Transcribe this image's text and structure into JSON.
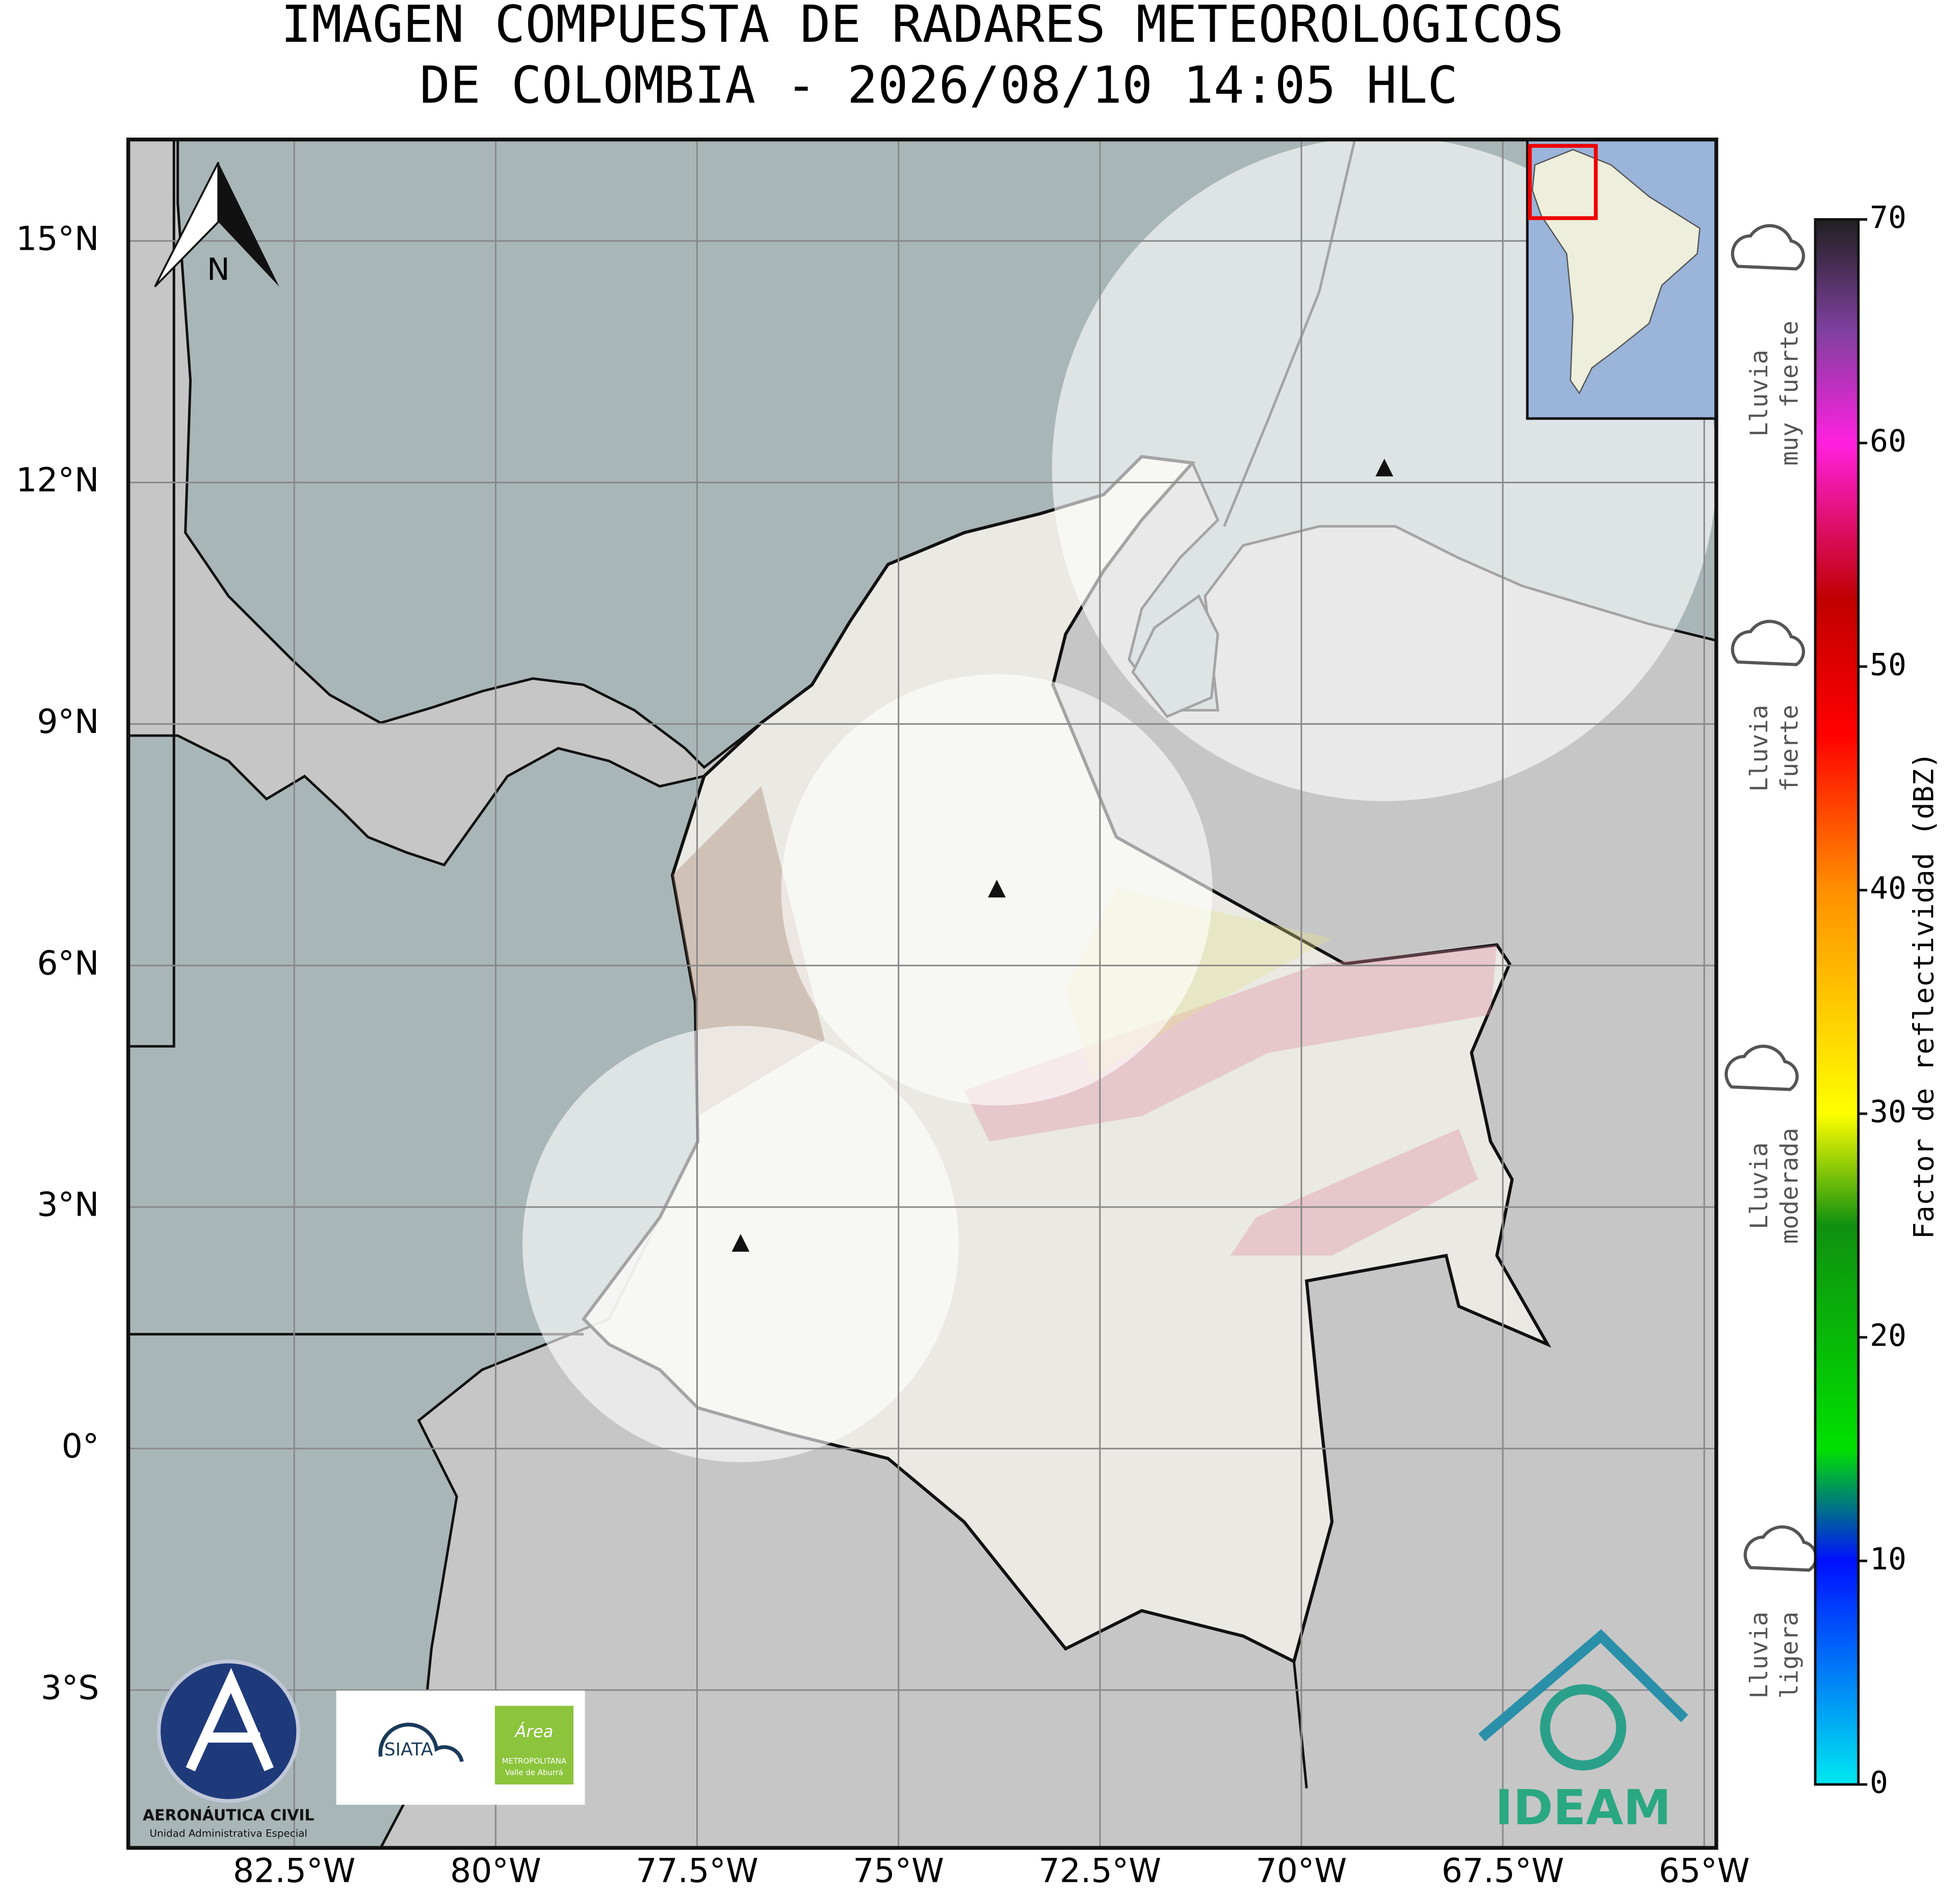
{
  "title": [
    "IMAGEN COMPUESTA DE RADARES METEOROLOGICOS",
    "DE COLOMBIA - 2026/08/10 14:05 HLC"
  ],
  "map": {
    "xlim": [
      -84.56,
      -64.85
    ],
    "ylim": [
      -4.96,
      16.26
    ],
    "xticks": [
      {
        "value": -82.5,
        "label": "82.5°W"
      },
      {
        "value": -80,
        "label": "80°W"
      },
      {
        "value": -77.5,
        "label": "77.5°W"
      },
      {
        "value": -75,
        "label": "75°W"
      },
      {
        "value": -72.5,
        "label": "72.5°W"
      },
      {
        "value": -70,
        "label": "70°W"
      },
      {
        "value": -67.5,
        "label": "67.5°W"
      },
      {
        "value": -65,
        "label": "65°W"
      }
    ],
    "yticks": [
      {
        "value": 15,
        "label": "15°N"
      },
      {
        "value": 12,
        "label": "12°N"
      },
      {
        "value": 9,
        "label": "9°N"
      },
      {
        "value": 6,
        "label": "6°N"
      },
      {
        "value": 3,
        "label": "3°N"
      },
      {
        "value": 0,
        "label": "0°"
      },
      {
        "value": -3,
        "label": "3°S"
      }
    ],
    "grid": true,
    "north": "N"
  },
  "radars": [
    {
      "lon": -73.78,
      "lat": 6.94
    },
    {
      "lon": -76.96,
      "lat": 2.54
    },
    {
      "lon": -68.97,
      "lat": 12.17
    }
  ],
  "colorbar": {
    "label": "Factor de reflectividad (dBZ)",
    "lim": [
      0,
      70
    ],
    "ticks": [
      0,
      10,
      20,
      30,
      40,
      50,
      60,
      70
    ],
    "stops": [
      {
        "value": 0,
        "color": "#00e8f0"
      },
      {
        "value": 10,
        "color": "#0010ff"
      },
      {
        "value": 15,
        "color": "#00e000"
      },
      {
        "value": 25,
        "color": "#109010"
      },
      {
        "value": 30,
        "color": "#ffff00"
      },
      {
        "value": 40,
        "color": "#ff9000"
      },
      {
        "value": 47,
        "color": "#ff0000"
      },
      {
        "value": 53,
        "color": "#c00000"
      },
      {
        "value": 60,
        "color": "#ff20e0"
      },
      {
        "value": 65,
        "color": "#8040a0"
      },
      {
        "value": 70,
        "color": "#202020"
      }
    ]
  },
  "legend": [
    {
      "line1": "Lluvia",
      "line2": "muy fuerte"
    },
    {
      "line1": "Lluvia",
      "line2": "fuerte"
    },
    {
      "line1": "Lluvia",
      "line2": "moderada"
    },
    {
      "line1": "Lluvia",
      "line2": "ligera"
    }
  ],
  "logos": {
    "aero": "AERONÁUTICA CIVIL",
    "aero_sub": "Unidad Administrativa Especial",
    "siata": "SIATA",
    "area": "Área",
    "area_sub1": "METROPOLITANA",
    "area_sub2": "Valle de Aburrá",
    "ideam": "IDEAM"
  }
}
